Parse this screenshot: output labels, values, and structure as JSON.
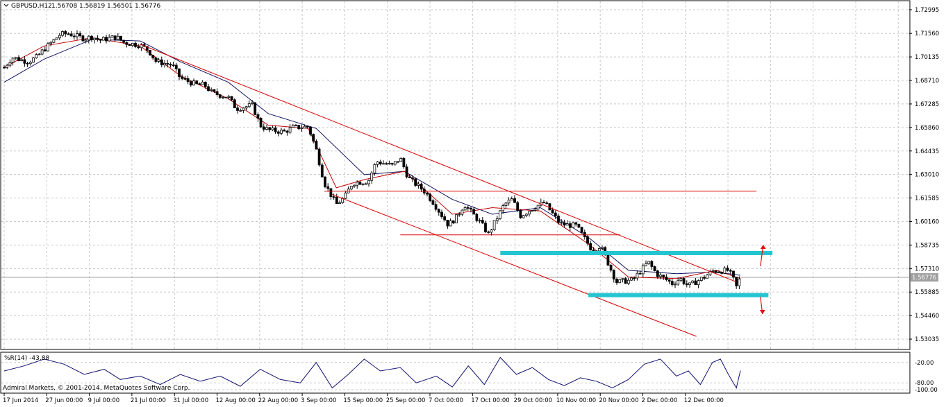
{
  "window": {
    "symbol_label": "GBPUSD,H12",
    "ohlc": [
      "1.56708",
      "1.56819",
      "1.56501",
      "1.56776"
    ],
    "copyright": "Admiral Markets, © 2001-2014, MetaQuotes Software Corp."
  },
  "indicator": {
    "label": "%R(14) -43.88",
    "levels": [
      "-20.00",
      "-80.00",
      "-100.00"
    ],
    "level_values": [
      -20,
      -80,
      -100
    ]
  },
  "chart_data": {
    "type": "candlestick",
    "symbol": "GBPUSD",
    "timeframe": "H12",
    "current_price": 1.56776,
    "current_price_label": "1.56776",
    "grid": true,
    "ylim": [
      1.5245,
      1.735
    ],
    "y_ticks": [
      "1.72995",
      "1.71560",
      "1.70135",
      "1.68710",
      "1.67285",
      "1.65860",
      "1.64435",
      "1.63010",
      "1.61585",
      "1.60160",
      "1.58735",
      "1.57310",
      "1.55885",
      "1.54460",
      "1.53035"
    ],
    "x_ticks": [
      "17 Jun 2014",
      "27 Jun 00:00",
      "9 Jul 00:00",
      "21 Jul 00:00",
      "31 Jul 00:00",
      "12 Aug 00:00",
      "22 Aug 00:00",
      "3 Sep 00:00",
      "15 Sep 00:00",
      "25 Sep 00:00",
      "7 Oct 00:00",
      "17 Oct 00:00",
      "29 Oct 00:00",
      "10 Nov 00:00",
      "20 Nov 00:00",
      "2 Dec 00:00",
      "12 Dec 00:00"
    ],
    "x_range": [
      "2014-06-17",
      "2014-12-18"
    ],
    "close_path": [
      [
        "2014-06-17",
        1.695
      ],
      [
        "2014-06-19",
        1.701
      ],
      [
        "2014-06-23",
        1.6985
      ],
      [
        "2014-06-25",
        1.701
      ],
      [
        "2014-06-27",
        1.706
      ],
      [
        "2014-07-01",
        1.715
      ],
      [
        "2014-07-03",
        1.7155
      ],
      [
        "2014-07-07",
        1.7125
      ],
      [
        "2014-07-09",
        1.7135
      ],
      [
        "2014-07-11",
        1.7115
      ],
      [
        "2014-07-15",
        1.7135
      ],
      [
        "2014-07-17",
        1.71
      ],
      [
        "2014-07-21",
        1.7085
      ],
      [
        "2014-07-23",
        1.7055
      ],
      [
        "2014-07-25",
        1.6985
      ],
      [
        "2014-07-29",
        1.6965
      ],
      [
        "2014-07-31",
        1.6885
      ],
      [
        "2014-08-04",
        1.6845
      ],
      [
        "2014-08-06",
        1.6845
      ],
      [
        "2014-08-08",
        1.6795
      ],
      [
        "2014-08-12",
        1.677
      ],
      [
        "2014-08-14",
        1.67
      ],
      [
        "2014-08-18",
        1.672
      ],
      [
        "2014-08-20",
        1.66
      ],
      [
        "2014-08-22",
        1.657
      ],
      [
        "2014-08-26",
        1.656
      ],
      [
        "2014-08-28",
        1.6585
      ],
      [
        "2014-09-01",
        1.659
      ],
      [
        "2014-09-03",
        1.645
      ],
      [
        "2014-09-05",
        1.625
      ],
      [
        "2014-09-08",
        1.612
      ],
      [
        "2014-09-10",
        1.616
      ],
      [
        "2014-09-12",
        1.625
      ],
      [
        "2014-09-16",
        1.626
      ],
      [
        "2014-09-18",
        1.638
      ],
      [
        "2014-09-22",
        1.6355
      ],
      [
        "2014-09-24",
        1.64
      ],
      [
        "2014-09-26",
        1.628
      ],
      [
        "2014-09-30",
        1.62
      ],
      [
        "2014-10-02",
        1.614
      ],
      [
        "2014-10-06",
        1.5995
      ],
      [
        "2014-10-08",
        1.604
      ],
      [
        "2014-10-10",
        1.612
      ],
      [
        "2014-10-14",
        1.601
      ],
      [
        "2014-10-16",
        1.594
      ],
      [
        "2014-10-20",
        1.612
      ],
      [
        "2014-10-22",
        1.615
      ],
      [
        "2014-10-24",
        1.605
      ],
      [
        "2014-10-28",
        1.611
      ],
      [
        "2014-10-30",
        1.613
      ],
      [
        "2014-11-03",
        1.6
      ],
      [
        "2014-11-05",
        1.5995
      ],
      [
        "2014-11-07",
        1.599
      ],
      [
        "2014-11-11",
        1.584
      ],
      [
        "2014-11-13",
        1.587
      ],
      [
        "2014-11-17",
        1.565
      ],
      [
        "2014-11-19",
        1.5655
      ],
      [
        "2014-11-21",
        1.566
      ],
      [
        "2014-11-25",
        1.577
      ],
      [
        "2014-11-27",
        1.57
      ],
      [
        "2014-12-01",
        1.564
      ],
      [
        "2014-12-03",
        1.567
      ],
      [
        "2014-12-05",
        1.5625
      ],
      [
        "2014-12-09",
        1.568
      ],
      [
        "2014-12-11",
        1.5715
      ],
      [
        "2014-12-15",
        1.572
      ],
      [
        "2014-12-16",
        1.568
      ],
      [
        "2014-12-17",
        1.562
      ],
      [
        "2014-12-18",
        1.56776
      ]
    ],
    "ma_slow": [
      [
        "2014-06-17",
        1.686
      ],
      [
        "2014-06-27",
        1.7
      ],
      [
        "2014-07-09",
        1.712
      ],
      [
        "2014-07-21",
        1.711
      ],
      [
        "2014-07-31",
        1.6985
      ],
      [
        "2014-08-12",
        1.686
      ],
      [
        "2014-08-22",
        1.667
      ],
      [
        "2014-09-03",
        1.658
      ],
      [
        "2014-09-15",
        1.63
      ],
      [
        "2014-09-25",
        1.632
      ],
      [
        "2014-10-07",
        1.615
      ],
      [
        "2014-10-17",
        1.606
      ],
      [
        "2014-10-29",
        1.61
      ],
      [
        "2014-11-10",
        1.592
      ],
      [
        "2014-11-20",
        1.572
      ],
      [
        "2014-12-02",
        1.57
      ],
      [
        "2014-12-12",
        1.571
      ],
      [
        "2014-12-18",
        1.569
      ]
    ],
    "ma_fast": [
      [
        "2014-06-17",
        1.695
      ],
      [
        "2014-06-27",
        1.708
      ],
      [
        "2014-07-09",
        1.713
      ],
      [
        "2014-07-21",
        1.708
      ],
      [
        "2014-07-31",
        1.69
      ],
      [
        "2014-08-12",
        1.676
      ],
      [
        "2014-08-22",
        1.66
      ],
      [
        "2014-09-01",
        1.658
      ],
      [
        "2014-09-08",
        1.622
      ],
      [
        "2014-09-15",
        1.627
      ],
      [
        "2014-09-25",
        1.632
      ],
      [
        "2014-10-07",
        1.606
      ],
      [
        "2014-10-17",
        1.61
      ],
      [
        "2014-10-29",
        1.608
      ],
      [
        "2014-11-10",
        1.588
      ],
      [
        "2014-11-20",
        1.568
      ],
      [
        "2014-12-02",
        1.567
      ],
      [
        "2014-12-12",
        1.572
      ],
      [
        "2014-12-18",
        1.567
      ]
    ],
    "trendlines": [
      {
        "from": [
          "2014-07-21",
          1.709
        ],
        "to": [
          "2014-12-17",
          1.565
        ]
      },
      {
        "from": [
          "2014-09-07",
          1.618
        ],
        "to": [
          "2014-12-07",
          1.532
        ]
      },
      {
        "from": [
          "2014-09-05",
          1.62
        ],
        "to": [
          "2014-12-22",
          1.62
        ]
      },
      {
        "from": [
          "2014-09-24",
          1.5935
        ],
        "to": [
          "2014-11-18",
          1.5935
        ]
      }
    ],
    "zones": [
      {
        "from": "2014-10-19",
        "to": "2014-12-26",
        "price": 1.5825
      },
      {
        "from": "2014-11-10",
        "to": "2014-12-25",
        "price": 1.557
      }
    ],
    "arrows": [
      {
        "date": "2014-12-23",
        "from": 1.5745,
        "to": 1.5875,
        "direction": "up"
      },
      {
        "date": "2014-12-23",
        "from": 1.556,
        "to": 1.5455,
        "direction": "down"
      }
    ],
    "wr_path": [
      [
        "2014-06-17",
        -45
      ],
      [
        "2014-06-22",
        -30
      ],
      [
        "2014-06-27",
        -10
      ],
      [
        "2014-07-02",
        -25
      ],
      [
        "2014-07-07",
        -55
      ],
      [
        "2014-07-12",
        -40
      ],
      [
        "2014-07-16",
        -70
      ],
      [
        "2014-07-21",
        -60
      ],
      [
        "2014-07-26",
        -85
      ],
      [
        "2014-07-31",
        -55
      ],
      [
        "2014-08-05",
        -75
      ],
      [
        "2014-08-10",
        -60
      ],
      [
        "2014-08-15",
        -90
      ],
      [
        "2014-08-20",
        -40
      ],
      [
        "2014-08-25",
        -70
      ],
      [
        "2014-08-30",
        -80
      ],
      [
        "2014-09-03",
        -20
      ],
      [
        "2014-09-07",
        -95
      ],
      [
        "2014-09-11",
        -55
      ],
      [
        "2014-09-15",
        -10
      ],
      [
        "2014-09-19",
        -45
      ],
      [
        "2014-09-24",
        -35
      ],
      [
        "2014-09-28",
        -80
      ],
      [
        "2014-10-03",
        -60
      ],
      [
        "2014-10-07",
        -92
      ],
      [
        "2014-10-11",
        -30
      ],
      [
        "2014-10-15",
        -85
      ],
      [
        "2014-10-19",
        -5
      ],
      [
        "2014-10-23",
        -55
      ],
      [
        "2014-10-27",
        -35
      ],
      [
        "2014-10-31",
        -70
      ],
      [
        "2014-11-04",
        -88
      ],
      [
        "2014-11-08",
        -65
      ],
      [
        "2014-11-12",
        -75
      ],
      [
        "2014-11-16",
        -95
      ],
      [
        "2014-11-20",
        -70
      ],
      [
        "2014-11-24",
        -25
      ],
      [
        "2014-11-28",
        -10
      ],
      [
        "2014-12-02",
        -60
      ],
      [
        "2014-12-05",
        -45
      ],
      [
        "2014-12-08",
        -85
      ],
      [
        "2014-12-11",
        -20
      ],
      [
        "2014-12-13",
        -10
      ],
      [
        "2014-12-15",
        -55
      ],
      [
        "2014-12-17",
        -95
      ],
      [
        "2014-12-18",
        -43.88
      ]
    ]
  },
  "colors": {
    "bull_candle": "#ffffff",
    "bear_candle": "#000000",
    "ma_fast": "#c00000",
    "ma_slow": "#101060",
    "trendline": "#d80000",
    "zone": "#22c5d0",
    "arrow": "#e01010",
    "wr_line": "#101070",
    "price_line": "#a0a0a0"
  }
}
